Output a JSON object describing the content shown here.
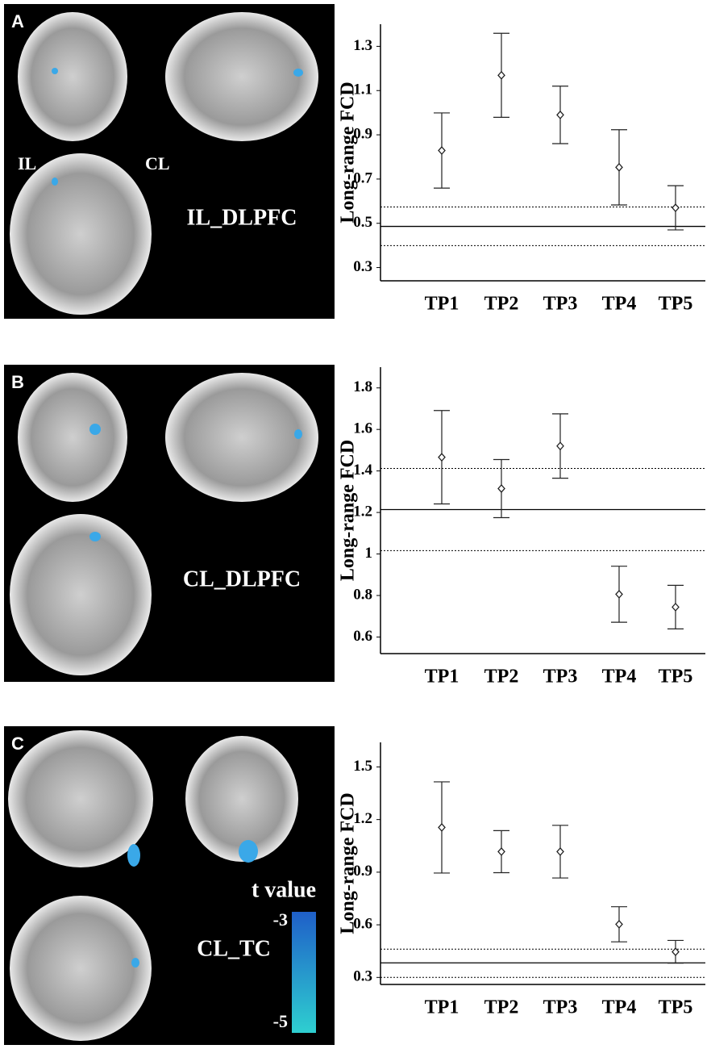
{
  "chart_data": [
    {
      "type": "errorbar",
      "panel_label": "A",
      "image_labels": [
        "IL",
        "CL",
        "IL_DLPFC"
      ],
      "y_label": "Long-range FCD",
      "categories": [
        "TP1",
        "TP2",
        "TP3",
        "TP4",
        "TP5"
      ],
      "values": [
        0.829,
        1.169,
        0.99,
        0.753,
        0.57
      ],
      "errors": [
        0.17,
        0.19,
        0.13,
        0.17,
        0.1
      ],
      "reference_line": 0.486,
      "reference_band": [
        0.399,
        0.574
      ],
      "ylim": [
        0.24,
        1.4
      ],
      "yticks": [
        0.3,
        0.5,
        0.7,
        0.9,
        1.1,
        1.3
      ],
      "color": "#222222"
    },
    {
      "type": "errorbar",
      "panel_label": "B",
      "image_labels": [
        "CL_DLPFC"
      ],
      "y_label": "Long-range FCD",
      "categories": [
        "TP1",
        "TP2",
        "TP3",
        "TP4",
        "TP5"
      ],
      "values": [
        1.466,
        1.315,
        1.52,
        0.806,
        0.744
      ],
      "errors": [
        0.225,
        0.14,
        0.155,
        0.135,
        0.105
      ],
      "reference_line": 1.214,
      "reference_band": [
        1.016,
        1.412
      ],
      "ylim": [
        0.52,
        1.9
      ],
      "yticks": [
        0.6,
        0.8,
        1.0,
        1.2,
        1.4,
        1.6,
        1.8
      ],
      "color": "#222222"
    },
    {
      "type": "errorbar",
      "panel_label": "C",
      "image_labels": [
        "CL_TC"
      ],
      "colorbar": {
        "title": "t value",
        "ticks": [
          -3,
          -5
        ],
        "colors": [
          "#1f5fc8",
          "#2ecfd0"
        ]
      },
      "y_label": "Long-range FCD",
      "categories": [
        "TP1",
        "TP2",
        "TP3",
        "TP4",
        "TP5"
      ],
      "values": [
        1.155,
        1.017,
        1.017,
        0.603,
        0.446
      ],
      "errors": [
        0.26,
        0.12,
        0.15,
        0.1,
        0.065
      ],
      "reference_line": 0.383,
      "reference_band": [
        0.3,
        0.461
      ],
      "ylim": [
        0.26,
        1.64
      ],
      "yticks": [
        0.3,
        0.6,
        0.9,
        1.2,
        1.5
      ],
      "color": "#222222"
    }
  ]
}
